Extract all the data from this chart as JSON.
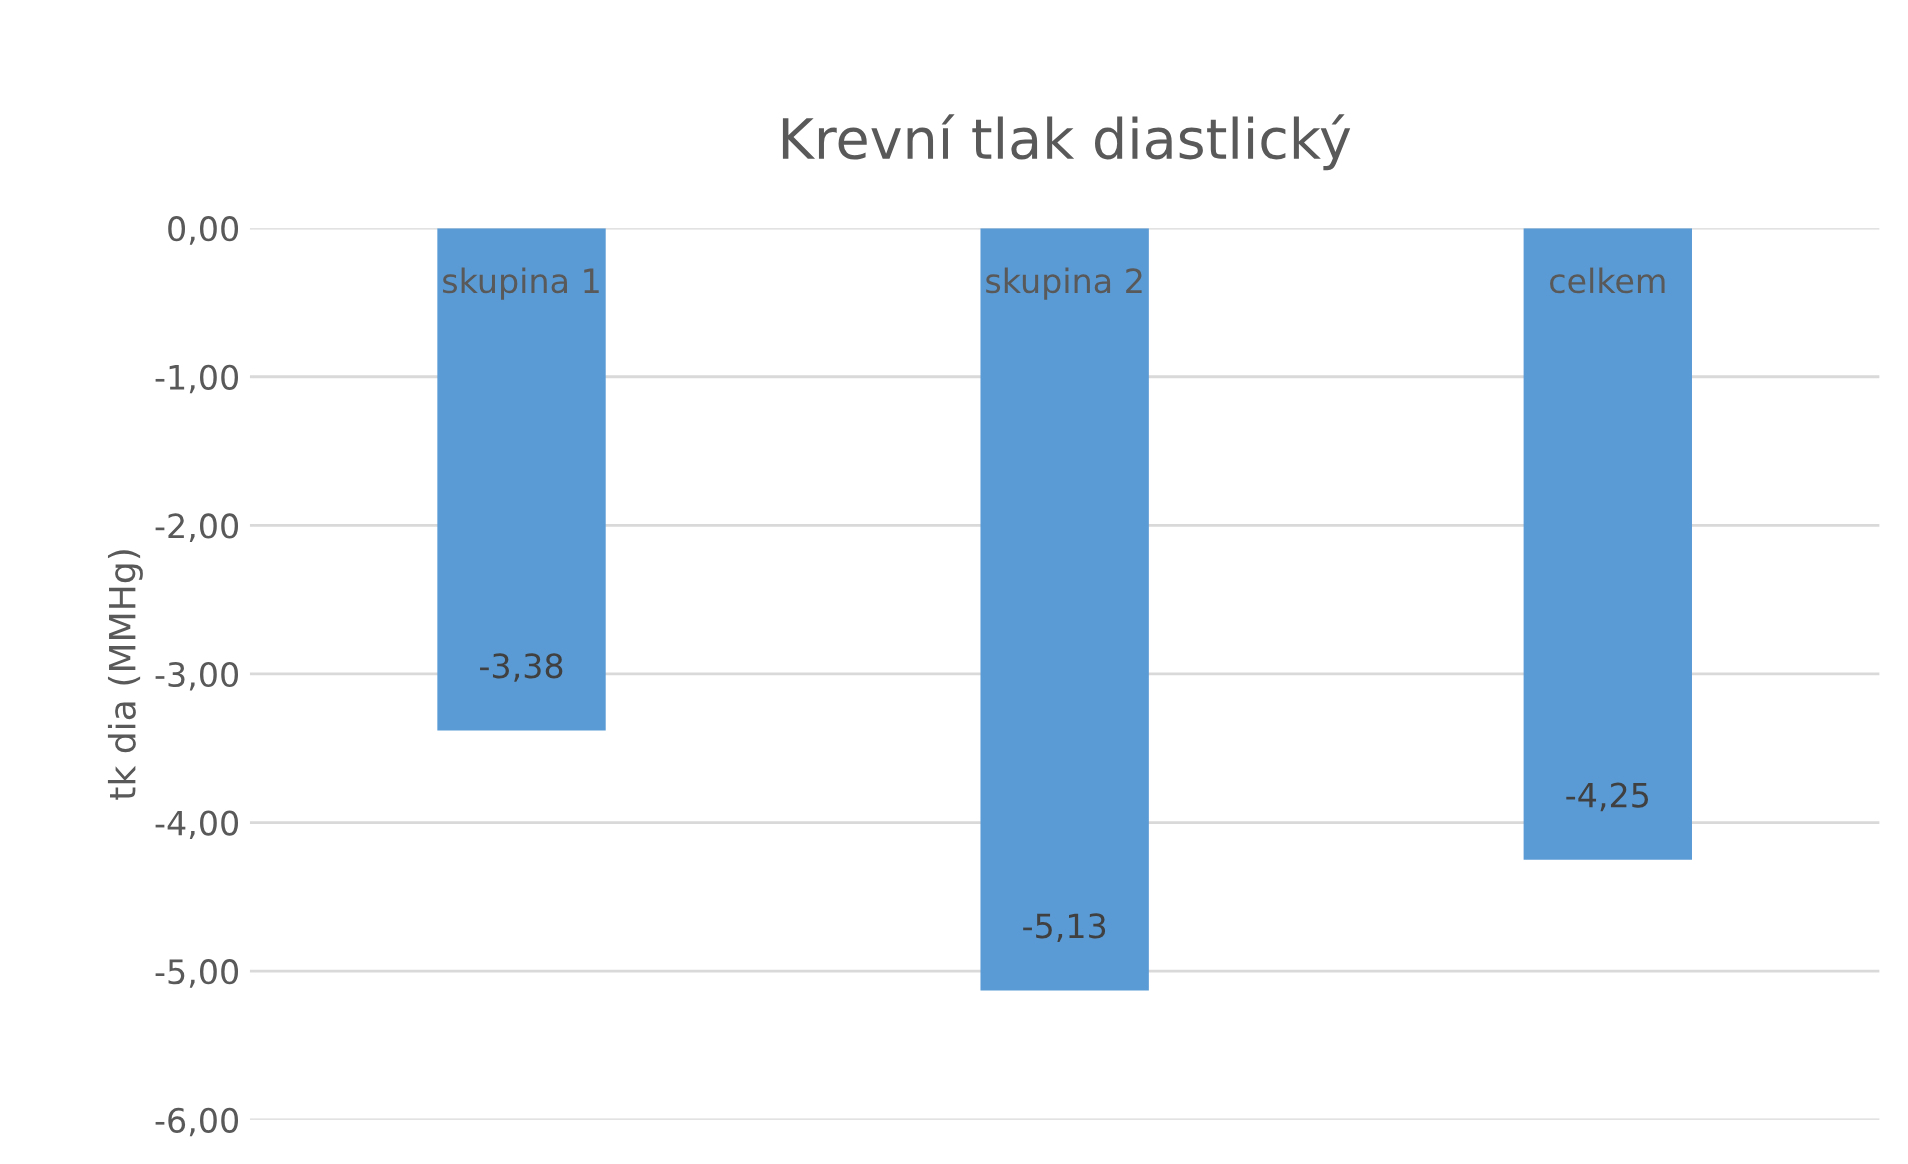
{
  "chart_data": {
    "type": "bar",
    "title": "Krevní tlak diastlický",
    "ylabel": "tk dia (MMHg)",
    "categories": [
      "skupina 1",
      "skupina 2",
      "celkem"
    ],
    "values": [
      -3.38,
      -5.13,
      -4.25
    ],
    "color": "#5b9bd5",
    "value_labels": [
      "-3,38",
      "-5,13",
      "-4,25"
    ],
    "ylim": [
      -6,
      0
    ],
    "yticks": [
      {
        "value": 0,
        "label": "0,00"
      },
      {
        "value": -1,
        "label": "-1,00"
      },
      {
        "value": -2,
        "label": "-2,00"
      },
      {
        "value": -3,
        "label": "-3,00"
      },
      {
        "value": -4,
        "label": "-4,00"
      },
      {
        "value": -5,
        "label": "-5,00"
      },
      {
        "value": -6,
        "label": "-6,00"
      }
    ],
    "grid": "y"
  }
}
